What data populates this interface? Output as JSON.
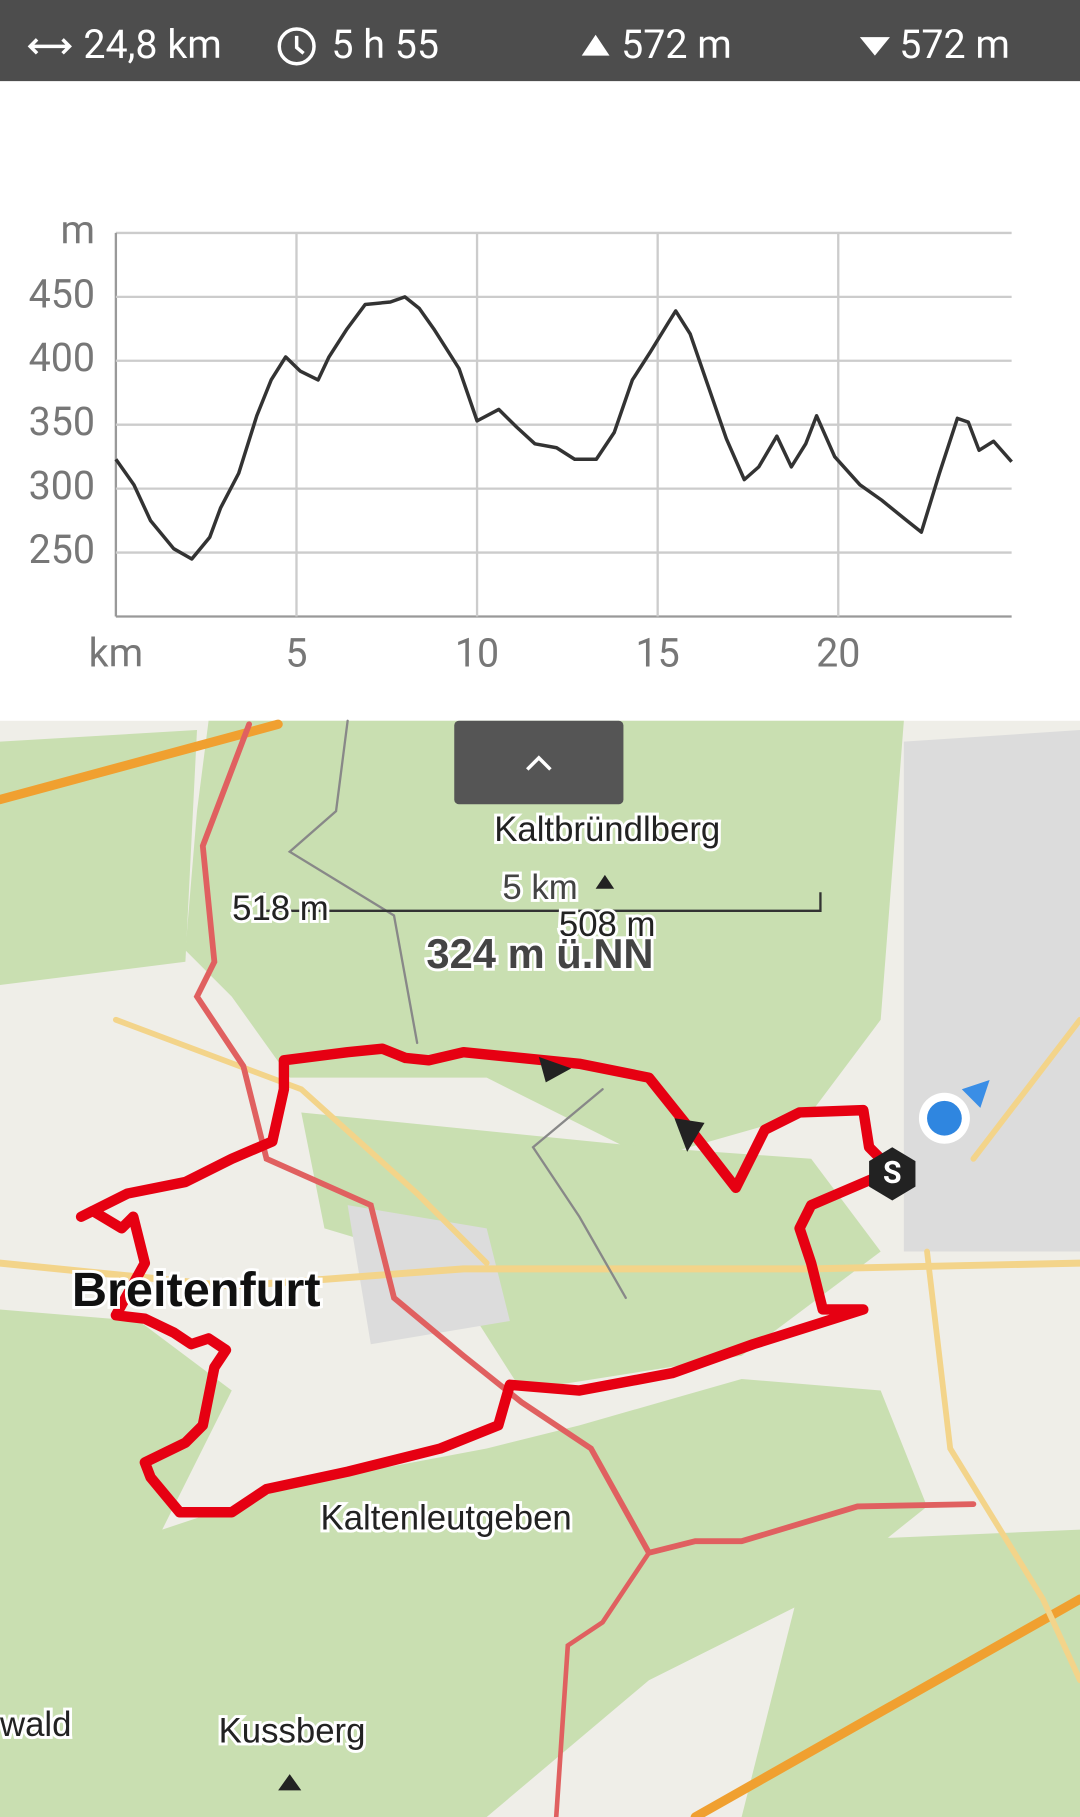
{
  "stats": {
    "distance": "24,8 km",
    "duration": "5 h 55",
    "ascent": "572 m",
    "descent": "572 m"
  },
  "chart_data": {
    "type": "line",
    "y_label": "m",
    "x_label": "km",
    "color": "#333333",
    "grid": true,
    "xlim": [
      0,
      24.8
    ],
    "ylim": [
      200,
      500
    ],
    "xticks": [
      5,
      10,
      15,
      20
    ],
    "yticks": [
      250,
      300,
      350,
      400,
      450
    ],
    "x": [
      0,
      0.5,
      0.96,
      1.6,
      2.1,
      2.6,
      2.9,
      3.4,
      3.9,
      4.3,
      4.7,
      5.1,
      5.6,
      5.9,
      6.4,
      6.9,
      7.6,
      8.0,
      8.4,
      8.8,
      9.5,
      10.0,
      10.6,
      11.1,
      11.6,
      12.2,
      12.7,
      13.3,
      13.8,
      14.3,
      14.8,
      15.3,
      15.5,
      15.9,
      16.4,
      16.9,
      17.4,
      17.8,
      18.3,
      18.7,
      19.1,
      19.4,
      19.9,
      20.6,
      21.2,
      21.9,
      22.3,
      22.8,
      23.3,
      23.6,
      23.9,
      24.3,
      24.8
    ],
    "values": [
      323,
      303,
      275,
      253,
      245,
      262,
      285,
      312,
      357,
      385,
      403,
      392,
      385,
      403,
      425,
      444,
      446,
      450,
      441,
      425,
      394,
      353,
      362,
      348,
      335,
      332,
      323,
      323,
      344,
      385,
      407,
      430,
      439,
      421,
      380,
      339,
      307,
      317,
      341,
      317,
      335,
      357,
      325,
      303,
      291,
      275,
      266,
      312,
      355,
      352,
      330,
      337,
      321
    ]
  },
  "map": {
    "peak": "Kaltbründlberg",
    "scale": "5 km",
    "elev_a": "518 m",
    "elev_b": "508 m",
    "current": "324 m ü.NN",
    "town_a": "Breitenfurt",
    "town_b": "Kaltenleutgeben",
    "town_c": "wald",
    "peak_b": "Kussberg",
    "start": "S"
  }
}
